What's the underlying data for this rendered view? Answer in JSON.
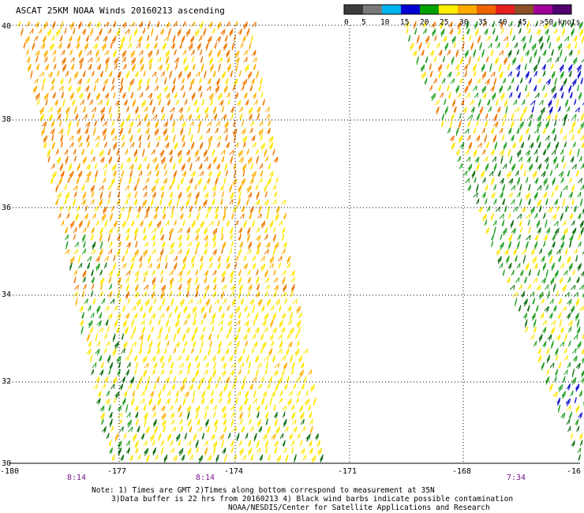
{
  "title": "ASCAT 25KM NOAA Winds 20160213 ascending",
  "legend": {
    "labels": [
      "0",
      "5",
      "10",
      "15",
      "20",
      "25",
      "30",
      "35",
      "40",
      "45",
      ">50 knots"
    ],
    "colors": [
      "#3c3c3c",
      "#7a7a7a",
      "#00b4f0",
      "#0000d2",
      "#00a000",
      "#ffee00",
      "#ffaa00",
      "#f06400",
      "#e61e1e",
      "#8c5028",
      "#a0009a",
      "#50006e"
    ]
  },
  "lat_labels": [
    "40",
    "38",
    "36",
    "34",
    "32",
    "30"
  ],
  "lon_labels": [
    "-180",
    "-177",
    "-174",
    "-171",
    "-168",
    "-16"
  ],
  "time_labels": [
    "8:14",
    "8:14",
    "7:34"
  ],
  "notes": {
    "line1": "Note: 1) Times are GMT 2)Times along bottom correspond to measurement at 35N",
    "line2": "3)Data buffer is 22 hrs from 20160213 4) Black wind barbs indicate possible contamination",
    "line3": "NOAA/NESDIS/Center for Satellite Applications and Research"
  }
}
